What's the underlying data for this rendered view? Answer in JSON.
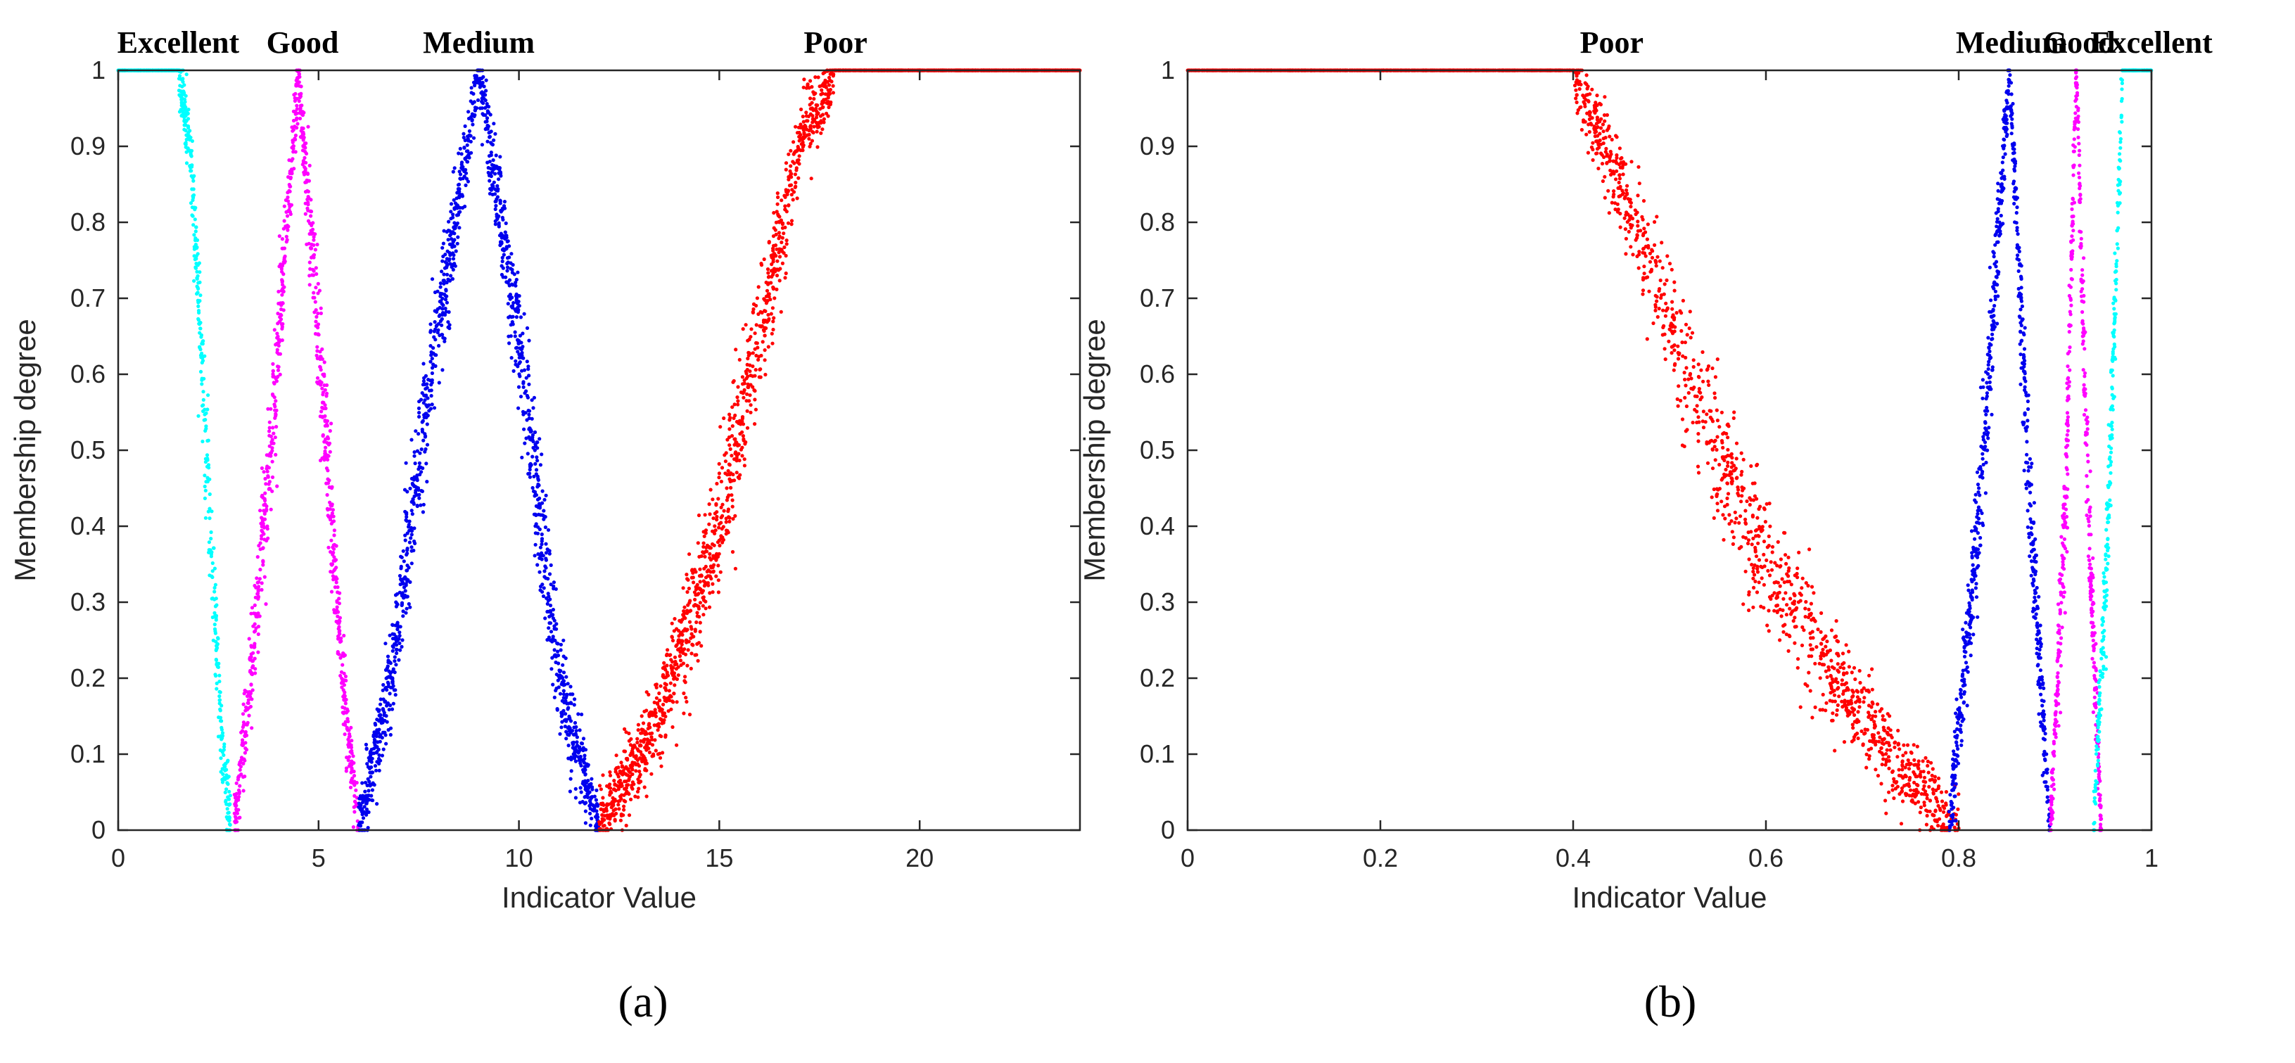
{
  "figure": {
    "panel_labels": [
      "(a)",
      "(b)"
    ]
  },
  "chart_data": [
    {
      "type": "scatter",
      "title": "",
      "xlabel": "Indicator Value",
      "ylabel": "Membership degree",
      "xlim": [
        0,
        24
      ],
      "ylim": [
        0,
        1
      ],
      "xticks": [
        0,
        5,
        10,
        15,
        20
      ],
      "xtick_labels": [
        "0",
        "5",
        "10",
        "15",
        "20"
      ],
      "yticks": [
        0,
        0.1,
        0.2,
        0.3,
        0.4,
        0.5,
        0.6,
        0.7,
        0.8,
        0.9,
        1
      ],
      "ytick_labels": [
        "0",
        "0.1",
        "0.2",
        "0.3",
        "0.4",
        "0.5",
        "0.6",
        "0.7",
        "0.8",
        "0.9",
        "1"
      ],
      "grid": false,
      "legend": "none",
      "annotations": [
        {
          "text": "Excellent",
          "x": 1.5
        },
        {
          "text": "Good",
          "x": 4.6
        },
        {
          "text": "Medium",
          "x": 9.0
        },
        {
          "text": "Poor",
          "x": 17.9
        }
      ],
      "series": [
        {
          "color": "#00ffff",
          "shape": "left-shoulder",
          "points": [
            [
              0,
              1
            ],
            [
              1.5,
              1
            ],
            [
              1.8,
              0.9
            ],
            [
              2.0,
              0.7
            ],
            [
              2.2,
              0.5
            ],
            [
              2.4,
              0.3
            ],
            [
              2.6,
              0.1
            ],
            [
              2.8,
              0
            ]
          ]
        },
        {
          "color": "#ff00ff",
          "shape": "triangle",
          "points": [
            [
              2.9,
              0
            ],
            [
              3.3,
              0.2
            ],
            [
              3.8,
              0.5
            ],
            [
              4.5,
              1
            ],
            [
              5.2,
              0.5
            ],
            [
              5.6,
              0.2
            ],
            [
              6.0,
              0
            ]
          ]
        },
        {
          "color": "#0000ee",
          "shape": "triangle",
          "points": [
            [
              6.0,
              0
            ],
            [
              6.8,
              0.2
            ],
            [
              7.8,
              0.6
            ],
            [
              9.0,
              1
            ],
            [
              10.1,
              0.6
            ],
            [
              11.0,
              0.2
            ],
            [
              12.0,
              0
            ]
          ]
        },
        {
          "color": "#ff0000",
          "shape": "right-shoulder",
          "points": [
            [
              12.0,
              0
            ],
            [
              13.5,
              0.15
            ],
            [
              15.0,
              0.4
            ],
            [
              16.0,
              0.65
            ],
            [
              17.0,
              0.9
            ],
            [
              17.9,
              1
            ],
            [
              24,
              1
            ]
          ]
        }
      ]
    },
    {
      "type": "scatter",
      "title": "",
      "xlabel": "Indicator Value",
      "ylabel": "Membership degree",
      "xlim": [
        0,
        1
      ],
      "ylim": [
        0,
        1
      ],
      "xticks": [
        0,
        0.2,
        0.4,
        0.6,
        0.8,
        1
      ],
      "xtick_labels": [
        "0",
        "0.2",
        "0.4",
        "0.6",
        "0.8",
        "1"
      ],
      "yticks": [
        0,
        0.1,
        0.2,
        0.3,
        0.4,
        0.5,
        0.6,
        0.7,
        0.8,
        0.9,
        1
      ],
      "ytick_labels": [
        "0",
        "0.1",
        "0.2",
        "0.3",
        "0.4",
        "0.5",
        "0.6",
        "0.7",
        "0.8",
        "0.9",
        "1"
      ],
      "grid": false,
      "legend": "none",
      "annotations": [
        {
          "text": "Poor",
          "x": 0.44
        },
        {
          "text": "Medium",
          "x": 0.855
        },
        {
          "text": "Good",
          "x": 0.925
        },
        {
          "text": "Excellent",
          "x": 1.0
        }
      ],
      "series": [
        {
          "color": "#ff0000",
          "shape": "left-shoulder",
          "points": [
            [
              0,
              1
            ],
            [
              0.4,
              1
            ],
            [
              0.45,
              0.85
            ],
            [
              0.52,
              0.6
            ],
            [
              0.6,
              0.35
            ],
            [
              0.68,
              0.18
            ],
            [
              0.75,
              0.07
            ],
            [
              0.8,
              0
            ]
          ]
        },
        {
          "color": "#0000ee",
          "shape": "triangle",
          "points": [
            [
              0.79,
              0
            ],
            [
              0.82,
              0.4
            ],
            [
              0.853,
              1
            ],
            [
              0.875,
              0.4
            ],
            [
              0.895,
              0
            ]
          ]
        },
        {
          "color": "#ff00ff",
          "shape": "triangle",
          "points": [
            [
              0.895,
              0
            ],
            [
              0.91,
              0.4
            ],
            [
              0.922,
              1
            ],
            [
              0.935,
              0.4
            ],
            [
              0.948,
              0
            ]
          ]
        },
        {
          "color": "#00ffff",
          "shape": "right-shoulder",
          "points": [
            [
              0.94,
              0
            ],
            [
              0.955,
              0.4
            ],
            [
              0.97,
              1
            ],
            [
              1.0,
              1
            ]
          ]
        }
      ]
    }
  ]
}
